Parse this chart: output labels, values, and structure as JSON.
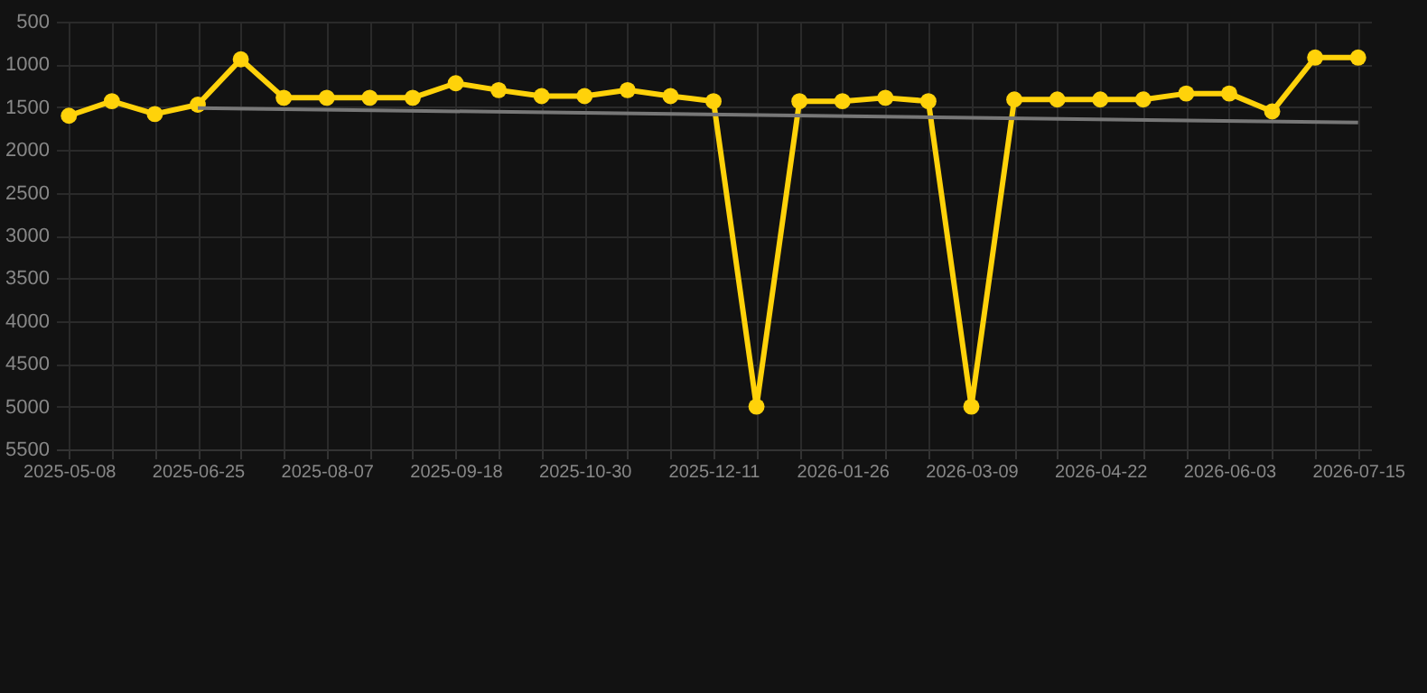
{
  "chart_data": {
    "type": "line",
    "categories": [
      "2025-05-08",
      null,
      null,
      "2025-06-25",
      null,
      null,
      "2025-08-07",
      null,
      null,
      "2025-09-18",
      null,
      null,
      "2025-10-30",
      null,
      null,
      "2025-12-11",
      null,
      null,
      "2026-01-26",
      null,
      null,
      "2026-03-09",
      null,
      null,
      "2026-04-22",
      null,
      null,
      "2026-06-03",
      null,
      null,
      "2026-07-15"
    ],
    "series": [
      {
        "color": "#ffd20a",
        "values": [
          1600,
          1430,
          1580,
          1470,
          940,
          1390,
          1390,
          1390,
          1390,
          1220,
          1300,
          1370,
          1370,
          1300,
          1370,
          1430,
          5000,
          1430,
          1430,
          1390,
          1430,
          5000,
          1410,
          1410,
          1410,
          1410,
          1340,
          1340,
          1550,
          920,
          920
        ],
        "marker": "circle"
      },
      {
        "type": "line",
        "color": "#777777",
        "values": [
          null,
          null,
          null,
          1510,
          null,
          null,
          null,
          null,
          null,
          null,
          null,
          null,
          null,
          null,
          null,
          null,
          null,
          null,
          null,
          null,
          null,
          null,
          null,
          null,
          null,
          null,
          null,
          null,
          null,
          null,
          1680
        ],
        "marker": "none"
      }
    ],
    "ylim": [
      5500,
      500
    ],
    "yticks": [
      500,
      1000,
      1500,
      2000,
      2500,
      3000,
      3500,
      4000,
      4500,
      5000,
      5500
    ],
    "grid": true
  }
}
